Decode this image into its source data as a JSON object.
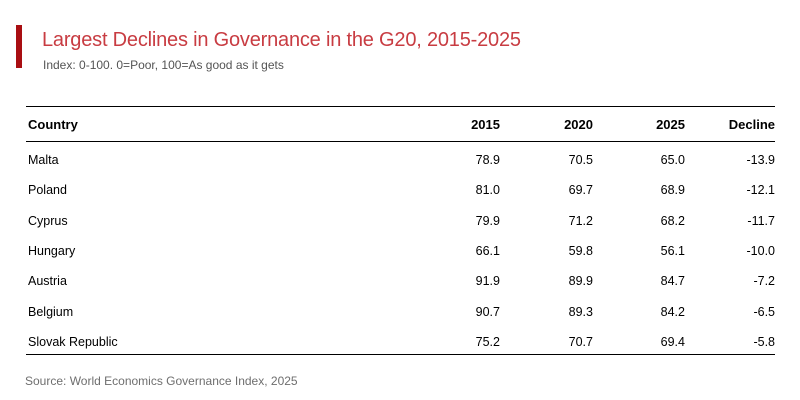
{
  "colors": {
    "accent_bar": "#A90E12",
    "title_text": "#C83C42",
    "subtitle_text": "#545454",
    "source_text": "#6E6E6E",
    "table_rule": "#000000"
  },
  "header": {
    "title": "Largest Declines in Governance in the G20, 2015-2025",
    "subtitle": "Index: 0-100. 0=Poor, 100=As good as it gets"
  },
  "table": {
    "columns": [
      "Country",
      "2015",
      "2020",
      "2025",
      "Decline"
    ],
    "rows": [
      {
        "country": "Malta",
        "v2015": "78.9",
        "v2020": "70.5",
        "v2025": "65.0",
        "decline": "-13.9"
      },
      {
        "country": "Poland",
        "v2015": "81.0",
        "v2020": "69.7",
        "v2025": "68.9",
        "decline": "-12.1"
      },
      {
        "country": "Cyprus",
        "v2015": "79.9",
        "v2020": "71.2",
        "v2025": "68.2",
        "decline": "-11.7"
      },
      {
        "country": "Hungary",
        "v2015": "66.1",
        "v2020": "59.8",
        "v2025": "56.1",
        "decline": "-10.0"
      },
      {
        "country": "Austria",
        "v2015": "91.9",
        "v2020": "89.9",
        "v2025": "84.7",
        "decline": "-7.2"
      },
      {
        "country": "Belgium",
        "v2015": "90.7",
        "v2020": "89.3",
        "v2025": "84.2",
        "decline": "-6.5"
      },
      {
        "country": "Slovak Republic",
        "v2015": "75.2",
        "v2020": "70.7",
        "v2025": "69.4",
        "decline": "-5.8"
      }
    ]
  },
  "footer": {
    "source": "Source: World Economics Governance Index, 2025"
  },
  "chart_data": {
    "type": "table",
    "title": "Largest Declines in Governance in the G20, 2015-2025",
    "subtitle": "Index: 0-100. 0=Poor, 100=As good as it gets",
    "columns": [
      "Country",
      "2015",
      "2020",
      "2025",
      "Decline"
    ],
    "rows": [
      [
        "Malta",
        78.9,
        70.5,
        65.0,
        -13.9
      ],
      [
        "Poland",
        81.0,
        69.7,
        68.9,
        -12.1
      ],
      [
        "Cyprus",
        79.9,
        71.2,
        68.2,
        -11.7
      ],
      [
        "Hungary",
        66.1,
        59.8,
        56.1,
        -10.0
      ],
      [
        "Austria",
        91.9,
        89.9,
        84.7,
        -7.2
      ],
      [
        "Belgium",
        90.7,
        89.3,
        84.2,
        -6.5
      ],
      [
        "Slovak Republic",
        75.2,
        70.7,
        69.4,
        -5.8
      ]
    ],
    "source": "Source: World Economics Governance Index, 2025"
  }
}
